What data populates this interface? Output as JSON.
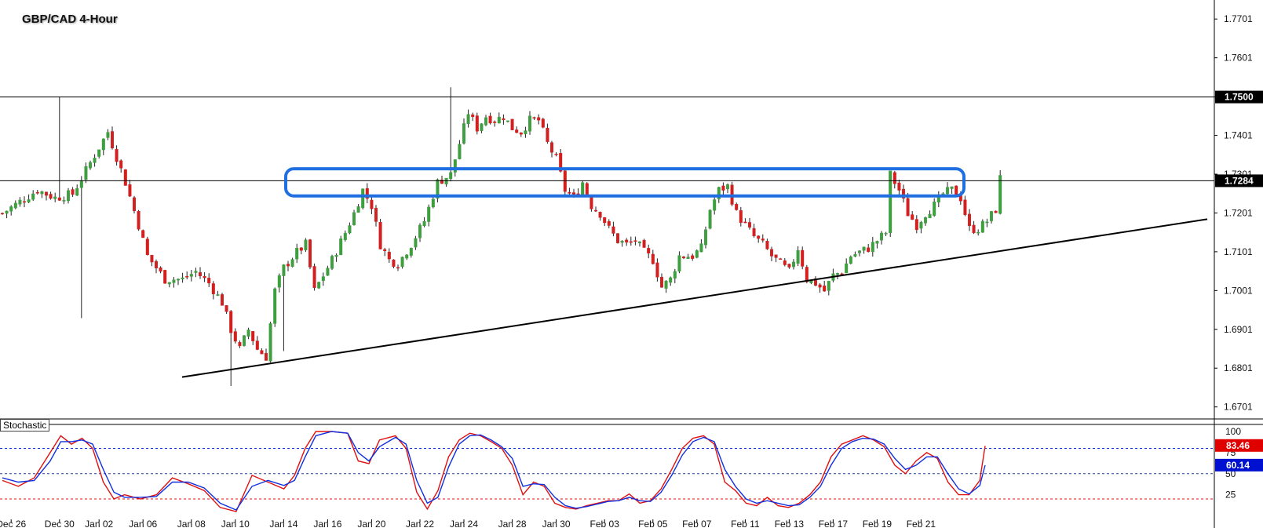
{
  "title": "GBP/CAD 4-Hour",
  "indicator_label": "Stochastic",
  "colors": {
    "bull": "#3f9e3f",
    "bear": "#d22020",
    "highlight": "#1f6fe0",
    "stoch_k": "#e01010",
    "stoch_d": "#1030e0",
    "price_tag_bg": "#000000",
    "k_tag_bg": "#e00000",
    "d_tag_bg": "#0010d0"
  },
  "chart_data": [
    {
      "type": "candlestick",
      "title": "GBP/CAD 4-Hour",
      "ylim": [
        1.667,
        1.775
      ],
      "y_ticks": [
        "1.7701",
        "1.7601",
        "1.7500",
        "1.7401",
        "1.7301",
        "1.7201",
        "1.7101",
        "1.7001",
        "1.6901",
        "1.6801",
        "1.6701"
      ],
      "x_ticks": [
        "Dec 26",
        "Dec 30",
        "Jan 02",
        "Jan 06",
        "Jan 08",
        "Jan 10",
        "Jan 14",
        "Jan 16",
        "Jan 20",
        "Jan 22",
        "Jan 24",
        "Jan 28",
        "Jan 30",
        "Feb 03",
        "Feb 05",
        "Feb 07",
        "Feb 11",
        "Feb 13",
        "Feb 17",
        "Feb 19",
        "Feb 21"
      ],
      "current_price": "1.7284",
      "resistance_level": "1.7500",
      "horizontal_lines": [
        1.75,
        1.7284
      ],
      "highlight_zone": [
        1.7245,
        1.7315
      ],
      "trendline": {
        "from": [
          "Jan 08",
          1.6778
        ],
        "to": [
          "Feb 21",
          1.7185
        ]
      },
      "price_path": [
        [
          0,
          1.72
        ],
        [
          8,
          1.726
        ],
        [
          12,
          1.724
        ],
        [
          16,
          1.725
        ],
        [
          20,
          1.733
        ],
        [
          24,
          1.741
        ],
        [
          28,
          1.728
        ],
        [
          31,
          1.717
        ],
        [
          33,
          1.709
        ],
        [
          37,
          1.703
        ],
        [
          41,
          1.703
        ],
        [
          44,
          1.705
        ],
        [
          47,
          1.702
        ],
        [
          50,
          1.697
        ],
        [
          52,
          1.69
        ],
        [
          54,
          1.685
        ],
        [
          56,
          1.69
        ],
        [
          58,
          1.685
        ],
        [
          60,
          1.683
        ],
        [
          62,
          1.7
        ],
        [
          64,
          1.706
        ],
        [
          67,
          1.71
        ],
        [
          69,
          1.712
        ],
        [
          71,
          1.7
        ],
        [
          73,
          1.704
        ],
        [
          75,
          1.708
        ],
        [
          78,
          1.715
        ],
        [
          80,
          1.72
        ],
        [
          82,
          1.726
        ],
        [
          84,
          1.722
        ],
        [
          86,
          1.712
        ],
        [
          88,
          1.708
        ],
        [
          90,
          1.707
        ],
        [
          93,
          1.712
        ],
        [
          96,
          1.718
        ],
        [
          99,
          1.728
        ],
        [
          102,
          1.73
        ],
        [
          104,
          1.738
        ],
        [
          106,
          1.746
        ],
        [
          108,
          1.742
        ],
        [
          110,
          1.745
        ],
        [
          112,
          1.744
        ],
        [
          114,
          1.745
        ],
        [
          116,
          1.742
        ],
        [
          118,
          1.741
        ],
        [
          120,
          1.744
        ],
        [
          122,
          1.744
        ],
        [
          124,
          1.738
        ],
        [
          126,
          1.734
        ],
        [
          128,
          1.726
        ],
        [
          130,
          1.724
        ],
        [
          132,
          1.728
        ],
        [
          134,
          1.722
        ],
        [
          136,
          1.72
        ],
        [
          138,
          1.716
        ],
        [
          140,
          1.713
        ],
        [
          142,
          1.712
        ],
        [
          144,
          1.713
        ],
        [
          146,
          1.71
        ],
        [
          148,
          1.708
        ],
        [
          150,
          1.701
        ],
        [
          152,
          1.703
        ],
        [
          154,
          1.709
        ],
        [
          157,
          1.709
        ],
        [
          159,
          1.711
        ],
        [
          161,
          1.721
        ],
        [
          163,
          1.726
        ],
        [
          165,
          1.727
        ],
        [
          167,
          1.72
        ],
        [
          169,
          1.717
        ],
        [
          171,
          1.714
        ],
        [
          173,
          1.712
        ],
        [
          175,
          1.709
        ],
        [
          177,
          1.707
        ],
        [
          179,
          1.705
        ],
        [
          181,
          1.711
        ],
        [
          183,
          1.703
        ],
        [
          185,
          1.702
        ],
        [
          187,
          1.7
        ],
        [
          189,
          1.704
        ],
        [
          191,
          1.705
        ],
        [
          193,
          1.709
        ],
        [
          195,
          1.71
        ],
        [
          197,
          1.711
        ],
        [
          199,
          1.713
        ],
        [
          201,
          1.715
        ],
        [
          202,
          1.73
        ],
        [
          204,
          1.726
        ],
        [
          206,
          1.72
        ],
        [
          208,
          1.717
        ],
        [
          210,
          1.72
        ],
        [
          212,
          1.722
        ],
        [
          214,
          1.725
        ],
        [
          216,
          1.726
        ],
        [
          218,
          1.724
        ],
        [
          220,
          1.716
        ],
        [
          222,
          1.716
        ],
        [
          224,
          1.718
        ],
        [
          226,
          1.721
        ],
        [
          227,
          1.729
        ]
      ]
    },
    {
      "type": "line",
      "title": "Stochastic",
      "ylim": [
        0,
        100
      ],
      "y_ticks": [
        "100",
        "75",
        "50",
        "25"
      ],
      "levels": [
        80,
        50,
        20
      ],
      "k_value": "83.46",
      "d_value": "60.14",
      "series": [
        {
          "name": "%K",
          "points": [
            [
              0,
              42
            ],
            [
              3,
              35
            ],
            [
              6,
              45
            ],
            [
              9,
              75
            ],
            [
              11,
              95
            ],
            [
              13,
              85
            ],
            [
              15,
              92
            ],
            [
              17,
              80
            ],
            [
              19,
              40
            ],
            [
              21,
              20
            ],
            [
              23,
              25
            ],
            [
              26,
              20
            ],
            [
              29,
              25
            ],
            [
              32,
              45
            ],
            [
              35,
              38
            ],
            [
              38,
              30
            ],
            [
              41,
              10
            ],
            [
              44,
              5
            ],
            [
              47,
              48
            ],
            [
              50,
              40
            ],
            [
              53,
              32
            ],
            [
              55,
              48
            ],
            [
              57,
              80
            ],
            [
              59,
              100
            ],
            [
              62,
              100
            ],
            [
              65,
              98
            ],
            [
              67,
              65
            ],
            [
              69,
              62
            ],
            [
              71,
              90
            ],
            [
              74,
              95
            ],
            [
              76,
              80
            ],
            [
              78,
              28
            ],
            [
              80,
              8
            ],
            [
              82,
              30
            ],
            [
              84,
              70
            ],
            [
              86,
              90
            ],
            [
              88,
              98
            ],
            [
              90,
              95
            ],
            [
              92,
              88
            ],
            [
              94,
              80
            ],
            [
              96,
              60
            ],
            [
              98,
              25
            ],
            [
              100,
              40
            ],
            [
              102,
              35
            ],
            [
              104,
              15
            ],
            [
              106,
              10
            ],
            [
              108,
              8
            ],
            [
              110,
              12
            ],
            [
              112,
              15
            ],
            [
              114,
              18
            ],
            [
              116,
              18
            ],
            [
              118,
              26
            ],
            [
              120,
              15
            ],
            [
              122,
              18
            ],
            [
              124,
              32
            ],
            [
              126,
              55
            ],
            [
              128,
              80
            ],
            [
              130,
              92
            ],
            [
              132,
              95
            ],
            [
              134,
              85
            ],
            [
              136,
              40
            ],
            [
              138,
              30
            ],
            [
              140,
              15
            ],
            [
              142,
              12
            ],
            [
              144,
              22
            ],
            [
              146,
              12
            ],
            [
              148,
              10
            ],
            [
              150,
              15
            ],
            [
              152,
              25
            ],
            [
              154,
              40
            ],
            [
              156,
              70
            ],
            [
              158,
              85
            ],
            [
              160,
              90
            ],
            [
              162,
              95
            ],
            [
              164,
              90
            ],
            [
              166,
              82
            ],
            [
              168,
              60
            ],
            [
              170,
              50
            ],
            [
              172,
              65
            ],
            [
              174,
              75
            ],
            [
              176,
              68
            ],
            [
              178,
              40
            ],
            [
              180,
              25
            ],
            [
              182,
              25
            ],
            [
              184,
              42
            ],
            [
              185,
              83
            ]
          ]
        },
        {
          "name": "%D",
          "points": [
            [
              0,
              45
            ],
            [
              3,
              40
            ],
            [
              6,
              42
            ],
            [
              9,
              65
            ],
            [
              11,
              88
            ],
            [
              13,
              88
            ],
            [
              15,
              90
            ],
            [
              17,
              85
            ],
            [
              19,
              55
            ],
            [
              21,
              28
            ],
            [
              23,
              22
            ],
            [
              26,
              22
            ],
            [
              29,
              23
            ],
            [
              32,
              40
            ],
            [
              35,
              40
            ],
            [
              38,
              33
            ],
            [
              41,
              15
            ],
            [
              44,
              7
            ],
            [
              47,
              35
            ],
            [
              50,
              42
            ],
            [
              53,
              36
            ],
            [
              55,
              42
            ],
            [
              57,
              70
            ],
            [
              59,
              95
            ],
            [
              62,
              100
            ],
            [
              65,
              98
            ],
            [
              67,
              75
            ],
            [
              69,
              65
            ],
            [
              71,
              82
            ],
            [
              74,
              93
            ],
            [
              76,
              85
            ],
            [
              78,
              42
            ],
            [
              80,
              15
            ],
            [
              82,
              22
            ],
            [
              84,
              58
            ],
            [
              86,
              85
            ],
            [
              88,
              95
            ],
            [
              90,
              96
            ],
            [
              92,
              90
            ],
            [
              94,
              82
            ],
            [
              96,
              68
            ],
            [
              98,
              35
            ],
            [
              100,
              38
            ],
            [
              102,
              37
            ],
            [
              104,
              22
            ],
            [
              106,
              12
            ],
            [
              108,
              9
            ],
            [
              110,
              11
            ],
            [
              112,
              14
            ],
            [
              114,
              17
            ],
            [
              116,
              18
            ],
            [
              118,
              22
            ],
            [
              120,
              18
            ],
            [
              122,
              17
            ],
            [
              124,
              28
            ],
            [
              126,
              48
            ],
            [
              128,
              72
            ],
            [
              130,
              88
            ],
            [
              132,
              93
            ],
            [
              134,
              88
            ],
            [
              136,
              55
            ],
            [
              138,
              35
            ],
            [
              140,
              20
            ],
            [
              142,
              15
            ],
            [
              144,
              18
            ],
            [
              146,
              15
            ],
            [
              148,
              12
            ],
            [
              150,
              13
            ],
            [
              152,
              22
            ],
            [
              154,
              35
            ],
            [
              156,
              60
            ],
            [
              158,
              80
            ],
            [
              160,
              88
            ],
            [
              162,
              92
            ],
            [
              164,
              91
            ],
            [
              166,
              85
            ],
            [
              168,
              68
            ],
            [
              170,
              55
            ],
            [
              172,
              60
            ],
            [
              174,
              70
            ],
            [
              176,
              70
            ],
            [
              178,
              50
            ],
            [
              180,
              32
            ],
            [
              182,
              26
            ],
            [
              184,
              36
            ],
            [
              185,
              60
            ]
          ]
        }
      ]
    }
  ]
}
